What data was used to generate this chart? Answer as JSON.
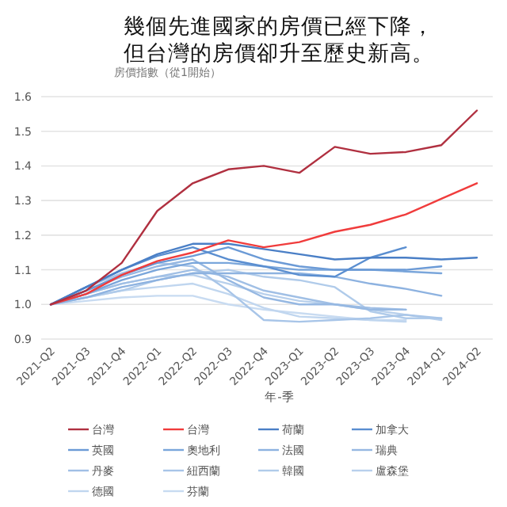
{
  "chart_data": {
    "type": "line",
    "title": "幾個先進國家的房價已經下降，但台灣的房價卻升至歷史新高。",
    "ylabel": "房價指數（從1開始）",
    "xlabel": "年-季",
    "categories": [
      "2021-Q2",
      "2021-Q3",
      "2021-Q4",
      "2022-Q1",
      "2022-Q2",
      "2022-Q3",
      "2022-Q4",
      "2023-Q1",
      "2023-Q2",
      "2023-Q3",
      "2023-Q4",
      "2024-Q1",
      "2024-Q2"
    ],
    "ylim": [
      0.9,
      1.6
    ],
    "yticks": [
      0.9,
      {
        "value": 1,
        "label": "1.0"
      },
      1.1,
      1.2,
      1.3,
      1.4,
      1.5,
      1.6
    ],
    "grid": "y",
    "legend": "bottom",
    "line_style": "solid",
    "marker": "none",
    "series": [
      {
        "name": "台灣",
        "color": "#b03040",
        "values": [
          1.0,
          1.04,
          1.12,
          1.27,
          1.35,
          1.39,
          1.4,
          1.38,
          1.455,
          1.435,
          1.44,
          1.46,
          1.56
        ]
      },
      {
        "name": "台灣",
        "color": "#f03c3c",
        "values": [
          1.0,
          1.03,
          1.085,
          1.125,
          1.15,
          1.185,
          1.165,
          1.18,
          1.21,
          1.23,
          1.26,
          1.305,
          1.35
        ]
      },
      {
        "name": "荷蘭",
        "color": "#4a7fc6",
        "values": [
          1.0,
          1.05,
          1.1,
          1.145,
          1.175,
          1.175,
          1.16,
          1.145,
          1.13,
          1.135,
          1.135,
          1.13,
          1.135
        ]
      },
      {
        "name": "加拿大",
        "color": "#5a8ed0",
        "values": [
          1.0,
          1.05,
          1.1,
          1.14,
          1.165,
          1.13,
          1.11,
          1.085,
          1.08,
          1.135,
          1.165,
          null,
          null
        ]
      },
      {
        "name": "英國",
        "color": "#6b9ad6",
        "values": [
          1.0,
          1.04,
          1.085,
          1.12,
          1.14,
          1.165,
          1.13,
          1.11,
          1.1,
          1.1,
          1.1,
          1.11,
          null
        ]
      },
      {
        "name": "奧地利",
        "color": "#7aa6db",
        "values": [
          1.0,
          1.03,
          1.07,
          1.1,
          1.12,
          1.12,
          1.11,
          1.1,
          1.1,
          1.1,
          1.095,
          1.09,
          null
        ]
      },
      {
        "name": "法國",
        "color": "#8db2e0",
        "values": [
          1.0,
          1.02,
          1.05,
          1.07,
          1.09,
          1.09,
          1.09,
          1.09,
          1.08,
          1.06,
          1.045,
          1.025,
          null
        ]
      },
      {
        "name": "瑞典",
        "color": "#96b8e2",
        "values": [
          1.0,
          1.04,
          1.08,
          1.11,
          1.13,
          1.07,
          1.02,
          1.0,
          1.0,
          0.985,
          0.985,
          null,
          null
        ]
      },
      {
        "name": "丹麥",
        "color": "#a0bfe5",
        "values": [
          1.0,
          1.03,
          1.06,
          1.08,
          1.1,
          1.08,
          1.04,
          1.02,
          1.0,
          0.99,
          0.985,
          null,
          null
        ]
      },
      {
        "name": "紐西蘭",
        "color": "#a8c5e8",
        "values": [
          1.0,
          1.05,
          1.09,
          1.12,
          1.11,
          1.04,
          0.955,
          0.95,
          0.955,
          0.96,
          0.97,
          0.96,
          null
        ]
      },
      {
        "name": "韓國",
        "color": "#b0cbea",
        "values": [
          1.0,
          1.02,
          1.04,
          1.07,
          1.09,
          1.1,
          1.08,
          1.07,
          1.05,
          0.98,
          0.96,
          0.96,
          null
        ]
      },
      {
        "name": "盧森堡",
        "color": "#b8d0ec",
        "values": [
          1.0,
          1.03,
          1.06,
          1.08,
          1.085,
          1.06,
          1.03,
          1.01,
          1.0,
          0.985,
          0.97,
          0.955,
          null
        ]
      },
      {
        "name": "德國",
        "color": "#c0d6ef",
        "values": [
          1.0,
          1.02,
          1.04,
          1.05,
          1.06,
          1.03,
          0.99,
          0.965,
          0.96,
          0.955,
          0.95,
          null,
          null
        ]
      },
      {
        "name": "芬蘭",
        "color": "#c8dbf1",
        "values": [
          1.0,
          1.01,
          1.02,
          1.025,
          1.025,
          1.0,
          0.985,
          0.975,
          0.965,
          0.955,
          0.955,
          null,
          null
        ]
      }
    ]
  }
}
